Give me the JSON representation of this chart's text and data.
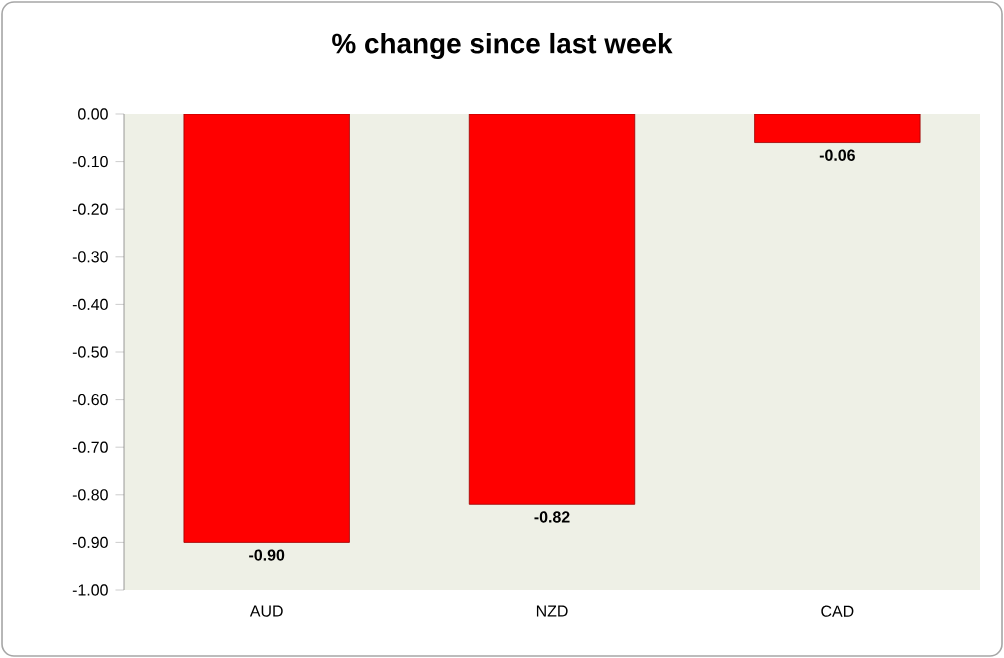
{
  "chart_data": {
    "type": "bar",
    "title": "% change since last week",
    "categories": [
      "AUD",
      "NZD",
      "CAD"
    ],
    "values": [
      -0.9,
      -0.82,
      -0.06
    ],
    "value_labels": [
      "-0.90",
      "-0.82",
      "-0.06"
    ],
    "color": "#ff0000",
    "ylim": [
      -1.0,
      0.0
    ],
    "yticks": [
      {
        "value": 0.0,
        "label": "0.00"
      },
      {
        "value": -0.1,
        "label": "-0.10"
      },
      {
        "value": -0.2,
        "label": "-0.20"
      },
      {
        "value": -0.3,
        "label": "-0.30"
      },
      {
        "value": -0.4,
        "label": "-0.40"
      },
      {
        "value": -0.5,
        "label": "-0.50"
      },
      {
        "value": -0.6,
        "label": "-0.60"
      },
      {
        "value": -0.7,
        "label": "-0.70"
      },
      {
        "value": -0.8,
        "label": "-0.80"
      },
      {
        "value": -0.9,
        "label": "-0.90"
      },
      {
        "value": -1.0,
        "label": "-1.00"
      }
    ],
    "grid": false
  }
}
